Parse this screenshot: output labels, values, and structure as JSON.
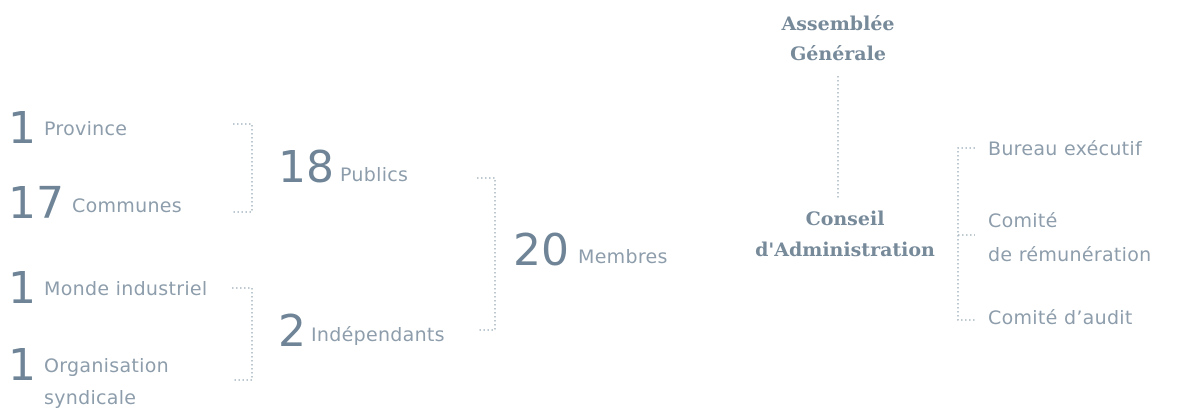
{
  "members": {
    "sources": [
      {
        "count": 1,
        "label": [
          "Province"
        ]
      },
      {
        "count": 17,
        "label": [
          "Communes"
        ]
      },
      {
        "count": 1,
        "label": [
          "Monde industriel"
        ]
      },
      {
        "count": 1,
        "label": [
          "Organisation",
          "syndicale"
        ]
      }
    ],
    "groups": [
      {
        "count": 18,
        "label": "Publics"
      },
      {
        "count": 2,
        "label": "Indépendants"
      }
    ],
    "total": {
      "count": 20,
      "label": "Membres"
    }
  },
  "governance": {
    "assembly": [
      "Assemblée",
      "Générale"
    ],
    "board": [
      "Conseil",
      "d'Administration"
    ],
    "committees": [
      [
        "Bureau exécutif"
      ],
      [
        "Comité",
        "de rémunération"
      ],
      [
        "Comité d’audit"
      ]
    ]
  }
}
